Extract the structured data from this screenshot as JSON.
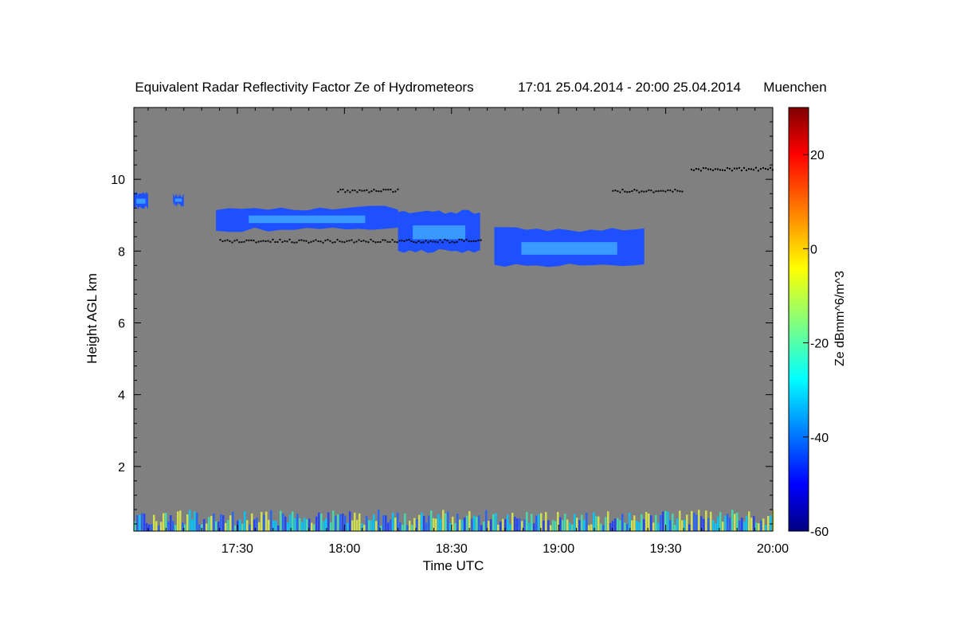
{
  "chart_data": {
    "type": "heatmap",
    "title": "Equivalent Radar Reflectivity Factor Ze of Hydrometeors",
    "period": "17:01 25.04.2014 - 20:00 25.04.2014",
    "location": "Muenchen",
    "xlabel": "Time UTC",
    "ylabel": "Height AGL km",
    "x_range": [
      "17:01",
      "20:00"
    ],
    "x_ticks": [
      "17:30",
      "18:00",
      "18:30",
      "19:00",
      "19:30",
      "20:00"
    ],
    "y_range": [
      0.2,
      12.0
    ],
    "y_ticks": [
      2,
      4,
      6,
      8,
      10
    ],
    "colorbar": {
      "label": "Ze dBmm^6/m^3",
      "range": [
        -60,
        30
      ],
      "ticks": [
        20,
        0,
        -20,
        -40,
        -60
      ]
    },
    "background_color": "#808080",
    "features": [
      {
        "kind": "echo",
        "start": "17:01",
        "end": "17:05",
        "base_km": 9.2,
        "top_km": 9.6
      },
      {
        "kind": "echo",
        "start": "17:12",
        "end": "17:15",
        "base_km": 9.3,
        "top_km": 9.55
      },
      {
        "kind": "echo",
        "start": "17:24",
        "end": "18:15",
        "base_km": 8.6,
        "top_km": 9.2
      },
      {
        "kind": "echo",
        "start": "18:15",
        "end": "18:38",
        "base_km": 8.0,
        "top_km": 9.1
      },
      {
        "kind": "echo",
        "start": "18:42",
        "end": "19:24",
        "base_km": 7.6,
        "top_km": 8.6
      },
      {
        "kind": "cloud-base-detection",
        "start": "17:25",
        "end": "18:38",
        "height_km": 8.3
      },
      {
        "kind": "cloud-base-detection",
        "start": "17:58",
        "end": "18:15",
        "height_km": 9.7
      },
      {
        "kind": "cloud-base-detection",
        "start": "19:15",
        "end": "19:35",
        "height_km": 9.7
      },
      {
        "kind": "cloud-base-detection",
        "start": "19:37",
        "end": "20:00",
        "height_km": 10.3
      },
      {
        "kind": "near-surface-clutter",
        "start": "17:01",
        "end": "20:00",
        "base_km": 0.2,
        "top_km": 0.8
      }
    ]
  }
}
